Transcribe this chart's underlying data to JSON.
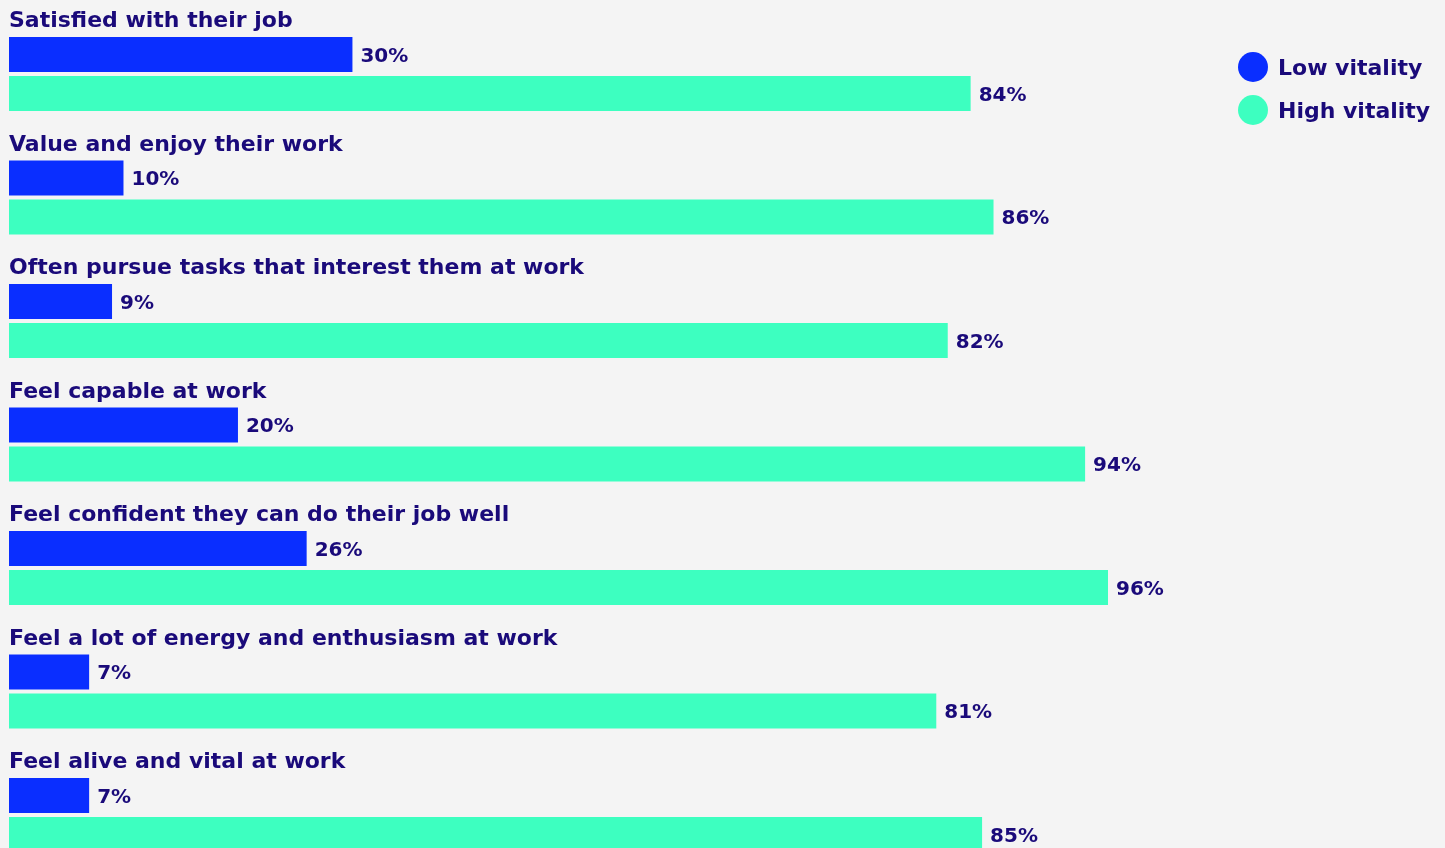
{
  "chart_data": {
    "type": "bar",
    "orientation": "horizontal",
    "categories": [
      "Satisfied with their job",
      "Value and enjoy their work",
      "Often pursue tasks that interest them at work",
      "Feel capable at work",
      "Feel confident they can do their job well",
      "Feel a lot of energy and enthusiasm at work",
      "Feel alive and vital at work"
    ],
    "series": [
      {
        "name": "Low vitality",
        "color": "#0a2eff",
        "values": [
          30,
          10,
          9,
          20,
          26,
          7,
          7
        ],
        "value_labels": [
          "30%",
          "10%",
          "9%",
          "20%",
          "26%",
          "7%",
          "7%"
        ]
      },
      {
        "name": "High vitality",
        "color": "#3dffc0",
        "values": [
          84,
          86,
          82,
          94,
          96,
          81,
          85
        ],
        "value_labels": [
          "84%",
          "86%",
          "82%",
          "94%",
          "96%",
          "81%",
          "85%"
        ]
      }
    ],
    "legend": "top right",
    "grid": false
  }
}
